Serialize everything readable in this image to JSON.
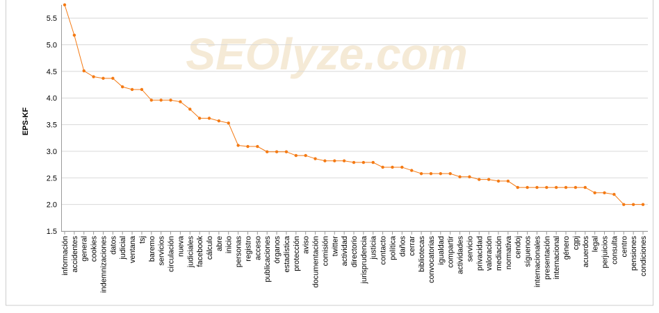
{
  "chart_data": {
    "type": "line",
    "y_label": "EPS-KF",
    "watermark": "SEOlyze.com",
    "categories": [
      "información",
      "accidentes",
      "general",
      "cookies",
      "indemnizaciones",
      "datos",
      "judicial",
      "ventana",
      "tsj",
      "baremo",
      "servicios",
      "circulación",
      "nueva",
      "judiciales",
      "facebook",
      "cálculo",
      "abre",
      "inicio",
      "personas",
      "registro",
      "acceso",
      "publicaciones",
      "órganos",
      "estadística",
      "protección",
      "aviso",
      "documentación",
      "comisión",
      "twitter",
      "actividad",
      "directorio",
      "jurisprudencia",
      "justicia",
      "contacto",
      "política",
      "daños",
      "cerrar",
      "bibliotecas",
      "convocatorias",
      "igualdad",
      "compartir",
      "actividades",
      "servicio",
      "privacidad",
      "valoración",
      "mediación",
      "normativa",
      "cendoj",
      "síguenos",
      "internacionales",
      "presentación",
      "internacional",
      "género",
      "cgpj",
      "acuerdos",
      "legal",
      "perjuicios",
      "consulta",
      "centro",
      "pensiones",
      "condiciones"
    ],
    "values": [
      5.75,
      5.18,
      4.51,
      4.4,
      4.37,
      4.37,
      4.21,
      4.16,
      4.16,
      3.96,
      3.96,
      3.96,
      3.93,
      3.79,
      3.62,
      3.62,
      3.57,
      3.53,
      3.11,
      3.09,
      3.09,
      2.99,
      2.99,
      2.99,
      2.92,
      2.92,
      2.86,
      2.82,
      2.82,
      2.82,
      2.79,
      2.79,
      2.79,
      2.7,
      2.7,
      2.7,
      2.64,
      2.58,
      2.58,
      2.58,
      2.58,
      2.52,
      2.52,
      2.47,
      2.47,
      2.44,
      2.44,
      2.32,
      2.32,
      2.32,
      2.32,
      2.32,
      2.32,
      2.32,
      2.32,
      2.22,
      2.22,
      2.19,
      2.0,
      2.0,
      2.0
    ],
    "color": "#f47a14",
    "ylim": [
      1.5,
      5.75
    ],
    "yticks": [
      {
        "value": 1.5,
        "label": "1.5"
      },
      {
        "value": 2,
        "label": "2.0"
      },
      {
        "value": 2.5,
        "label": "2.5"
      },
      {
        "value": 3,
        "label": "3.0"
      },
      {
        "value": 3.5,
        "label": "3.5"
      },
      {
        "value": 4,
        "label": "4.0"
      },
      {
        "value": 4.5,
        "label": "4.5"
      },
      {
        "value": 5,
        "label": "5.0"
      },
      {
        "value": 5.5,
        "label": "5.5"
      }
    ],
    "grid": true
  }
}
